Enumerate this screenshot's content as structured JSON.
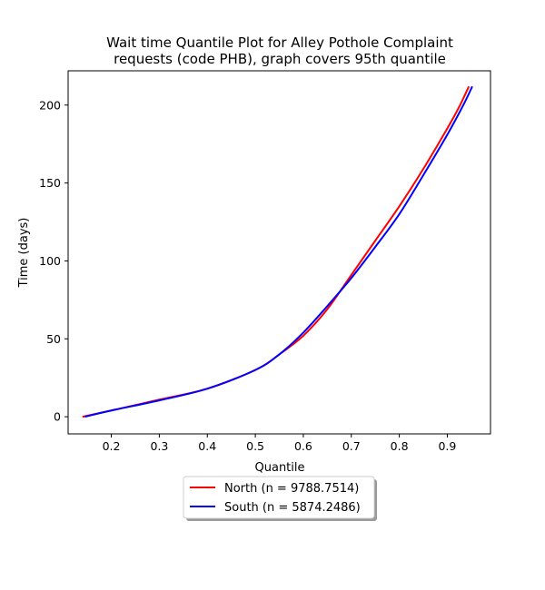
{
  "chart_data": {
    "type": "line",
    "title_lines": [
      "Wait time Quantile Plot for Alley Pothole Complaint",
      "requests (code PHB), graph covers 95th quantile"
    ],
    "xlabel": "Quantile",
    "ylabel": "Time (days)",
    "xlim": [
      0.11,
      0.99
    ],
    "ylim": [
      -11,
      222
    ],
    "x_ticks": [
      0.2,
      0.3,
      0.4,
      0.5,
      0.6,
      0.7,
      0.8,
      0.9
    ],
    "x_tick_labels": [
      "0.2",
      "0.3",
      "0.4",
      "0.5",
      "0.6",
      "0.7",
      "0.8",
      "0.9"
    ],
    "y_ticks": [
      0,
      50,
      100,
      150,
      200
    ],
    "y_tick_labels": [
      "0",
      "50",
      "100",
      "150",
      "200"
    ],
    "grid": false,
    "legend_position": "below plot, center",
    "series": [
      {
        "name": "North (n = 9788.7514)",
        "color": "#ff0000",
        "x": [
          0.14,
          0.2,
          0.3,
          0.4,
          0.5,
          0.55,
          0.6,
          0.65,
          0.7,
          0.75,
          0.8,
          0.85,
          0.9,
          0.925,
          0.945
        ],
        "y": [
          0,
          4,
          11,
          18,
          30,
          40,
          52,
          69,
          91,
          113,
          135,
          159,
          185,
          199,
          212
        ]
      },
      {
        "name": "South (n = 5874.2486)",
        "color": "#0000ff",
        "x": [
          0.145,
          0.2,
          0.3,
          0.4,
          0.5,
          0.55,
          0.6,
          0.65,
          0.7,
          0.75,
          0.8,
          0.85,
          0.9,
          0.935,
          0.952
        ],
        "y": [
          0,
          4,
          10.5,
          18,
          30,
          40,
          54,
          71,
          89,
          109,
          130,
          155,
          181,
          201,
          212
        ]
      }
    ]
  }
}
